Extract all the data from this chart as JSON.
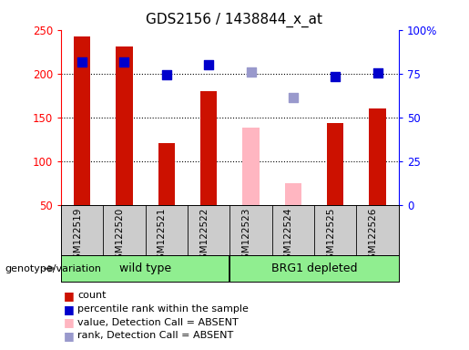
{
  "title": "GDS2156 / 1438844_x_at",
  "samples": [
    "GSM122519",
    "GSM122520",
    "GSM122521",
    "GSM122522",
    "GSM122523",
    "GSM122524",
    "GSM122525",
    "GSM122526"
  ],
  "count_values": [
    242,
    231,
    120,
    180,
    null,
    null,
    143,
    160
  ],
  "count_absent_values": [
    null,
    null,
    null,
    null,
    138,
    75,
    null,
    null
  ],
  "percentile_values": [
    213,
    213,
    199,
    210,
    null,
    null,
    197,
    201
  ],
  "percentile_absent_values": [
    null,
    null,
    null,
    null,
    202,
    173,
    null,
    null
  ],
  "ylim_left": [
    50,
    250
  ],
  "ylim_right": [
    0,
    100
  ],
  "left_ticks": [
    50,
    100,
    150,
    200,
    250
  ],
  "right_ticks": [
    0,
    25,
    50,
    75,
    100
  ],
  "right_tick_labels": [
    "0",
    "25",
    "50",
    "75",
    "100%"
  ],
  "bar_width": 0.4,
  "bar_color_present": "#CC1100",
  "bar_color_absent": "#FFB6C1",
  "dot_color_present": "#0000CC",
  "dot_color_absent": "#9999CC",
  "dot_size": 45,
  "bg_color": "#CCCCCC",
  "group_label": "genotype/variation",
  "wild_type_color": "#90EE90",
  "brg1_color": "#90EE90"
}
